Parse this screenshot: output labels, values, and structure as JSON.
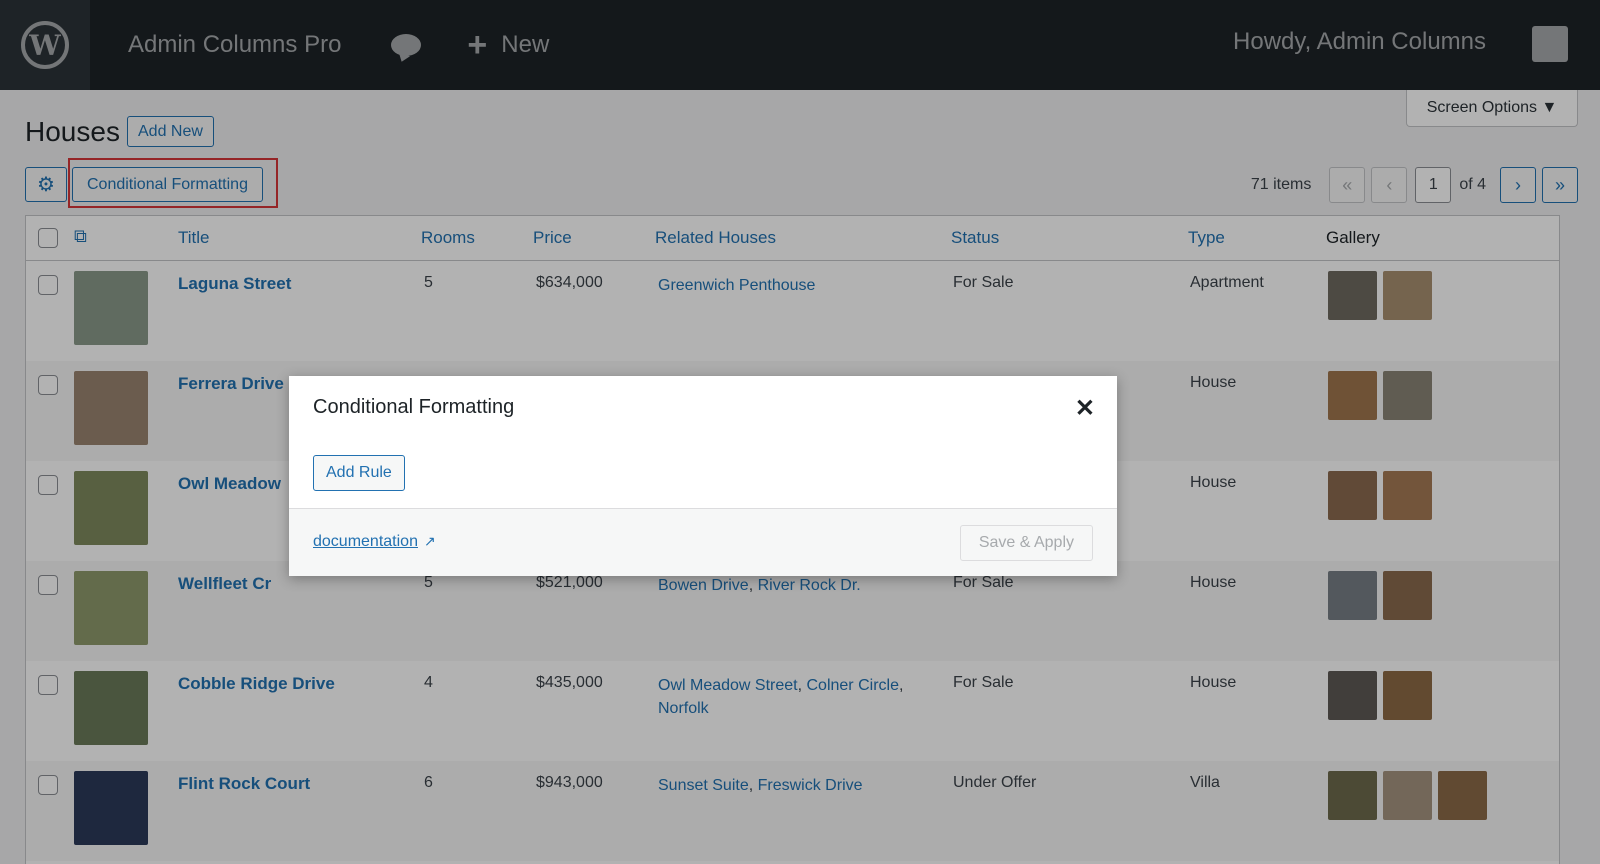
{
  "adminbar": {
    "site_name": "Admin Columns Pro",
    "new_label": "New",
    "howdy": "Howdy,  Admin Columns",
    "logo_icon": "wordpress-icon",
    "comments_icon": "comment-bubble-icon"
  },
  "screen_options": "Screen Options ▼",
  "page": {
    "title": "Houses",
    "add_new": "Add New"
  },
  "toolbar": {
    "settings_icon": "gear-icon",
    "conditional_formatting": "Conditional Formatting"
  },
  "pagination": {
    "items": "71 items",
    "first": "«",
    "prev": "‹",
    "current": "1",
    "of": "of 4",
    "next": "›",
    "last": "»"
  },
  "table": {
    "columns": [
      "Title",
      "Rooms",
      "Price",
      "Related Houses",
      "Status",
      "Type",
      "Gallery"
    ],
    "rows": [
      {
        "title": "Laguna Street",
        "rooms": "5",
        "price": "$634,000",
        "related": [
          "Greenwich Penthouse"
        ],
        "status": "For Sale",
        "type": "Apartment",
        "thumb_color": "#8a9a8a",
        "gallery": [
          "#6f6a60",
          "#a89070"
        ]
      },
      {
        "title": "Ferrera Drive",
        "rooms": "",
        "price": "",
        "related": [],
        "status": "",
        "type": "House",
        "thumb_color": "#9a8470",
        "gallery": [
          "#a0764e",
          "#8a8576"
        ]
      },
      {
        "title": "Owl Meadow",
        "rooms": "",
        "price": "",
        "related": [],
        "status": "",
        "type": "House",
        "thumb_color": "#7e8a5e",
        "gallery": [
          "#8c6b50",
          "#a57a55"
        ]
      },
      {
        "title": "Wellfleet Cr",
        "rooms": "5",
        "price": "$521,000",
        "related": [
          "Bowen Drive",
          "River Rock Dr."
        ],
        "status": "For Sale",
        "type": "House",
        "thumb_color": "#8f9a6c",
        "gallery": [
          "#777f86",
          "#8a6a4e"
        ]
      },
      {
        "title": "Cobble Ridge Drive",
        "rooms": "4",
        "price": "$435,000",
        "related": [
          "Owl Meadow Street",
          "Colner Circle",
          "Norfolk"
        ],
        "status": "For Sale",
        "type": "House",
        "thumb_color": "#6b7a5a",
        "gallery": [
          "#5e5a55",
          "#8d6a45"
        ]
      },
      {
        "title": "Flint Rock Court",
        "rooms": "6",
        "price": "$943,000",
        "related": [
          "Sunset Suite",
          "Freswick Drive"
        ],
        "status": "Under Offer",
        "type": "Villa",
        "thumb_color": "#2c3a5a",
        "gallery": [
          "#6d6a4c",
          "#a59480",
          "#8c6a48"
        ]
      }
    ]
  },
  "modal": {
    "title": "Conditional Formatting",
    "close_icon": "close-icon",
    "add_rule": "Add Rule",
    "documentation": "documentation",
    "external_icon": "external-link-icon",
    "save_apply": "Save & Apply"
  }
}
